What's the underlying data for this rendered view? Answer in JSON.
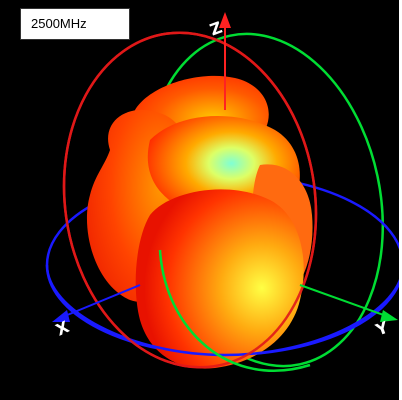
{
  "frequency_label": "2500MHz",
  "axes": {
    "x": "X",
    "y": "Y",
    "z": "Z"
  },
  "colors": {
    "background": "#000000",
    "x_ring": "#1a1aff",
    "y_ring": "#00dd33",
    "z_ring": "#ff1a1a",
    "pattern_high": "#7fffd4",
    "pattern_mid": "#ffff33",
    "pattern_low": "#ff2a00"
  },
  "pattern": {
    "type": "3d-radiation-pattern"
  }
}
